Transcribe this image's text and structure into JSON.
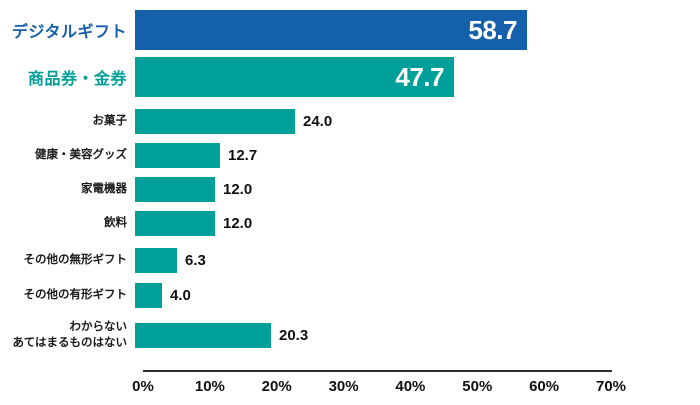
{
  "chart_data": {
    "type": "bar",
    "orientation": "horizontal",
    "title": "",
    "xlabel": "",
    "ylabel": "",
    "xlim": [
      0,
      70
    ],
    "unit": "%",
    "grid": false,
    "legend": "none",
    "x_ticks": [
      "0%",
      "10%",
      "20%",
      "30%",
      "40%",
      "50%",
      "60%",
      "70%"
    ],
    "categories": [
      "デジタルギフト",
      "商品券・金券",
      "お菓子",
      "健康・美容グッズ",
      "家電機器",
      "飲料",
      "その他の無形ギフト",
      "その他の有形ギフト",
      "わからない あてはまるものはない"
    ],
    "values": [
      58.7,
      47.7,
      24.0,
      12.7,
      12.0,
      12.0,
      6.3,
      4.0,
      20.3
    ],
    "rows": [
      {
        "label_lines": [
          "デジタルギフト"
        ],
        "value": 58.7,
        "display": "58.7",
        "bar_color": "#1560ab",
        "label_color": "#1560ab",
        "size": "big",
        "value_position": "inside"
      },
      {
        "label_lines": [
          "商品券・金券"
        ],
        "value": 47.7,
        "display": "47.7",
        "bar_color": "#00a09a",
        "label_color": "#00a09a",
        "size": "big",
        "value_position": "inside"
      },
      {
        "label_lines": [
          "お菓子"
        ],
        "value": 24.0,
        "display": "24.0",
        "bar_color": "#00a09a",
        "label_color": "#1a1a1a",
        "size": "small",
        "value_position": "outside"
      },
      {
        "label_lines": [
          "健康・美容グッズ"
        ],
        "value": 12.7,
        "display": "12.7",
        "bar_color": "#00a09a",
        "label_color": "#1a1a1a",
        "size": "small",
        "value_position": "outside"
      },
      {
        "label_lines": [
          "家電機器"
        ],
        "value": 12.0,
        "display": "12.0",
        "bar_color": "#00a09a",
        "label_color": "#1a1a1a",
        "size": "small",
        "value_position": "outside"
      },
      {
        "label_lines": [
          "飲料"
        ],
        "value": 12.0,
        "display": "12.0",
        "bar_color": "#00a09a",
        "label_color": "#1a1a1a",
        "size": "small",
        "value_position": "outside"
      },
      {
        "label_lines": [
          "その他の無形ギフト"
        ],
        "value": 6.3,
        "display": "6.3",
        "bar_color": "#00a09a",
        "label_color": "#1a1a1a",
        "size": "small",
        "value_position": "outside"
      },
      {
        "label_lines": [
          "その他の有形ギフト"
        ],
        "value": 4.0,
        "display": "4.0",
        "bar_color": "#00a09a",
        "label_color": "#1a1a1a",
        "size": "small",
        "value_position": "outside"
      },
      {
        "label_lines": [
          "わからない",
          "あてはまるものはない"
        ],
        "value": 20.3,
        "display": "20.3",
        "bar_color": "#00a09a",
        "label_color": "#1a1a1a",
        "size": "small",
        "value_position": "outside"
      }
    ],
    "colors": {
      "highlight_blue": "#1560ab",
      "teal": "#00a09a",
      "axis_line": "#2e2e2e",
      "value_text_inside": "#ffffff",
      "value_text_outside": "#111111"
    }
  }
}
